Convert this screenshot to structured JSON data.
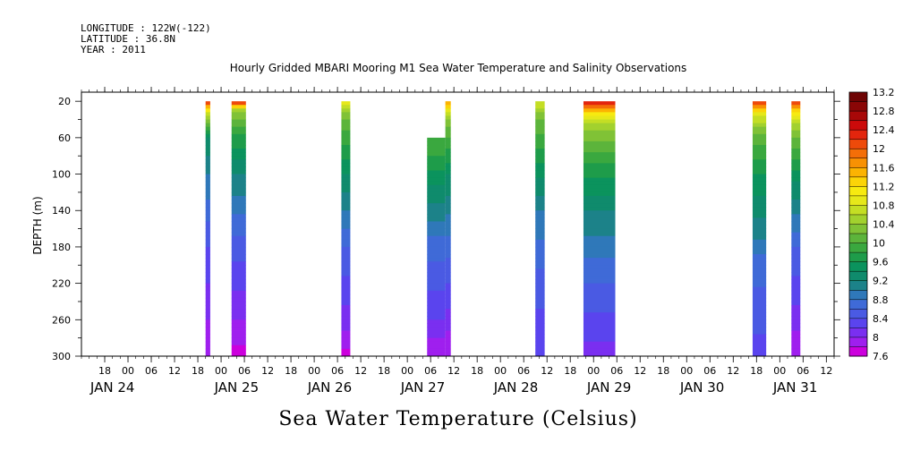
{
  "header": {
    "longitude": "LONGITUDE : 122W(-122)",
    "latitude": "LATITUDE : 36.8N",
    "year": "YEAR : 2011"
  },
  "chart_data": {
    "type": "heatmap",
    "title": "Hourly Gridded MBARI Mooring M1 Sea Water Temperature and Salinity Observations",
    "xlabel": "",
    "ylabel": "DEPTH (m)",
    "colorbar_label": "Sea Water Temperature (Celsius)",
    "x_unit": "hours since JAN 24 00:00",
    "xlim": [
      -12,
      182
    ],
    "ylim": [
      300,
      10
    ],
    "y_ticks": [
      20,
      60,
      100,
      140,
      180,
      220,
      260,
      300
    ],
    "x_tick_labels": [
      "18",
      "00",
      "06",
      "12",
      "18",
      "00",
      "06",
      "12",
      "18",
      "00",
      "06",
      "12",
      "18",
      "00",
      "06",
      "12",
      "18",
      "00",
      "06",
      "12",
      "18",
      "00",
      "06",
      "12",
      "18",
      "00",
      "06",
      "12",
      "18",
      "00",
      "06",
      "12"
    ],
    "day_labels": [
      "JAN 24",
      "JAN 25",
      "JAN 26",
      "JAN 27",
      "JAN 28",
      "JAN 29",
      "JAN 30",
      "JAN 31"
    ],
    "colorbar": {
      "min": 7.6,
      "max": 13.2,
      "step": 0.2,
      "labels": [
        "13.2",
        "12.8",
        "12.4",
        "12",
        "11.6",
        "11.2",
        "10.8",
        "10.4",
        "10",
        "9.6",
        "9.2",
        "8.8",
        "8.4",
        "8",
        "7.6"
      ]
    },
    "data_segments": [
      {
        "x_start": 20.0,
        "x_end": 21.2,
        "top_depth": 20,
        "profile": [
          [
            20,
            12.3
          ],
          [
            30,
            11.0
          ],
          [
            40,
            10.3
          ],
          [
            60,
            9.4
          ],
          [
            100,
            9.0
          ],
          [
            180,
            8.4
          ],
          [
            260,
            8.0
          ],
          [
            300,
            7.9
          ]
        ]
      },
      {
        "x_start": 26.7,
        "x_end": 30.4,
        "top_depth": 20,
        "profile": [
          [
            20,
            12.4
          ],
          [
            25,
            11.6
          ],
          [
            30,
            10.5
          ],
          [
            50,
            9.9
          ],
          [
            100,
            9.2
          ],
          [
            180,
            8.5
          ],
          [
            260,
            8.0
          ],
          [
            300,
            7.7
          ]
        ]
      },
      {
        "x_start": 55.0,
        "x_end": 57.3,
        "top_depth": 20,
        "profile": [
          [
            20,
            11.0
          ],
          [
            35,
            10.3
          ],
          [
            60,
            9.9
          ],
          [
            100,
            9.4
          ],
          [
            180,
            8.6
          ],
          [
            260,
            8.1
          ],
          [
            300,
            7.7
          ]
        ]
      },
      {
        "x_start": 77.1,
        "x_end": 81.8,
        "top_depth": 60,
        "profile": [
          [
            60,
            10.0
          ],
          [
            80,
            9.8
          ],
          [
            120,
            9.3
          ],
          [
            180,
            8.7
          ],
          [
            260,
            8.2
          ],
          [
            300,
            7.8
          ]
        ]
      },
      {
        "x_start": 81.8,
        "x_end": 83.2,
        "top_depth": 20,
        "profile": [
          [
            20,
            11.6
          ],
          [
            40,
            10.3
          ],
          [
            60,
            10.0
          ],
          [
            100,
            9.4
          ],
          [
            180,
            8.7
          ],
          [
            260,
            8.1
          ],
          [
            300,
            7.8
          ]
        ]
      },
      {
        "x_start": 105.0,
        "x_end": 107.4,
        "top_depth": 20,
        "profile": [
          [
            20,
            10.8
          ],
          [
            40,
            10.2
          ],
          [
            80,
            9.7
          ],
          [
            140,
            9.0
          ],
          [
            220,
            8.5
          ],
          [
            300,
            8.2
          ]
        ]
      },
      {
        "x_start": 117.4,
        "x_end": 125.6,
        "top_depth": 20,
        "profile": [
          [
            20,
            12.4
          ],
          [
            30,
            11.4
          ],
          [
            45,
            10.5
          ],
          [
            80,
            9.9
          ],
          [
            140,
            9.2
          ],
          [
            220,
            8.6
          ],
          [
            300,
            8.1
          ]
        ]
      },
      {
        "x_start": 161.0,
        "x_end": 164.5,
        "top_depth": 20,
        "profile": [
          [
            20,
            12.4
          ],
          [
            35,
            10.8
          ],
          [
            60,
            10.1
          ],
          [
            100,
            9.6
          ],
          [
            160,
            9.1
          ],
          [
            200,
            8.7
          ],
          [
            300,
            8.3
          ]
        ]
      },
      {
        "x_start": 171.0,
        "x_end": 173.3,
        "top_depth": 20,
        "profile": [
          [
            20,
            12.4
          ],
          [
            30,
            11.3
          ],
          [
            50,
            10.4
          ],
          [
            100,
            9.5
          ],
          [
            180,
            8.6
          ],
          [
            260,
            8.1
          ],
          [
            300,
            7.8
          ]
        ]
      }
    ]
  },
  "colors": {
    "scale": [
      "#cc00dd",
      "#9f1fee",
      "#7a2ff0",
      "#5a44ee",
      "#4a5ae3",
      "#3f6ad7",
      "#2f78b9",
      "#1c8289",
      "#0f8b6c",
      "#0b935d",
      "#1e9c4a",
      "#3aa83f",
      "#5cb43b",
      "#80c236",
      "#a2d12e",
      "#c4de24",
      "#e6e81a",
      "#f7ea10",
      "#fbd408",
      "#fcb302",
      "#f89103",
      "#f46e08",
      "#ee4a0a",
      "#e3250d",
      "#cc0a0a",
      "#a80808",
      "#8a0606",
      "#6e0404"
    ]
  }
}
